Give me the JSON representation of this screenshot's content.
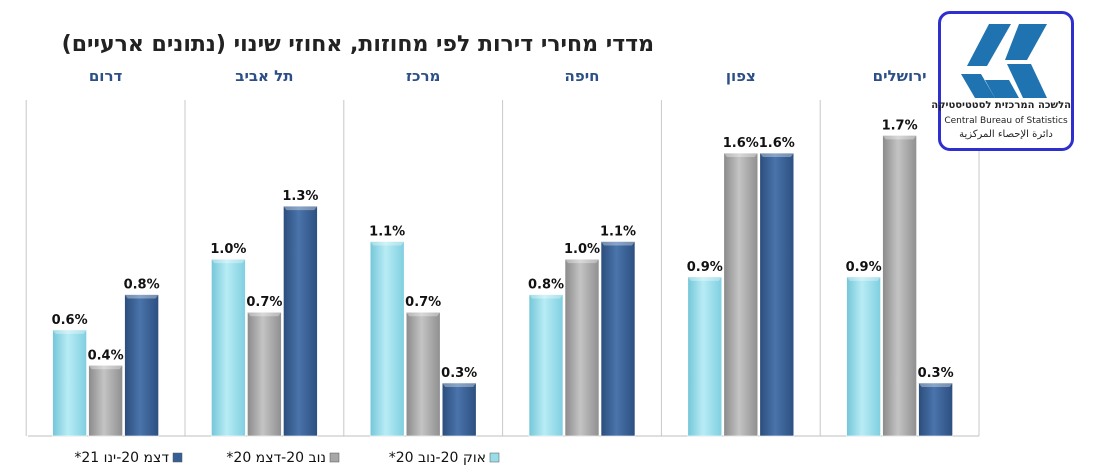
{
  "chart_data": {
    "type": "bar",
    "title": "מדדי מחירי דירות לפי מחוזות, אחוזי שינוי (נתונים ארעיים)",
    "categories": [
      "ירושלים",
      "צפון",
      "חיפה",
      "מרכז",
      "תל אביב",
      "דרום"
    ],
    "series": [
      {
        "name": "אוק 20-נוב 20*",
        "values": [
          0.9,
          0.9,
          0.8,
          1.1,
          1.0,
          0.6
        ],
        "labels": [
          "0.9%",
          "0.9%",
          "0.8%",
          "1.1%",
          "1.0%",
          "0.6%"
        ]
      },
      {
        "name": "נוב 20-דצמ 20*",
        "values": [
          1.7,
          1.6,
          1.0,
          0.7,
          0.7,
          0.4
        ],
        "labels": [
          "1.7%",
          "1.6%",
          "1.0%",
          "0.7%",
          "0.7%",
          "0.4%"
        ]
      },
      {
        "name": "דצמ 20-ינו 21*",
        "values": [
          0.3,
          1.6,
          1.1,
          0.3,
          1.3,
          0.8
        ],
        "labels": [
          "0.3%",
          "1.6%",
          "1.1%",
          "0.3%",
          "1.3%",
          "0.8%"
        ]
      }
    ],
    "ylim": [
      0,
      1.9
    ],
    "legend_position": "bottom",
    "colors": [
      "#99dde9",
      "#a6a6a6",
      "#365f95"
    ]
  },
  "logo": {
    "hebrew": "הלשכה המרכזית לסטטיסטיקה",
    "english": "Central Bureau of Statistics",
    "arabic": "دائرة الإحصاء المركزية",
    "icon": "cbs-logo-icon"
  }
}
